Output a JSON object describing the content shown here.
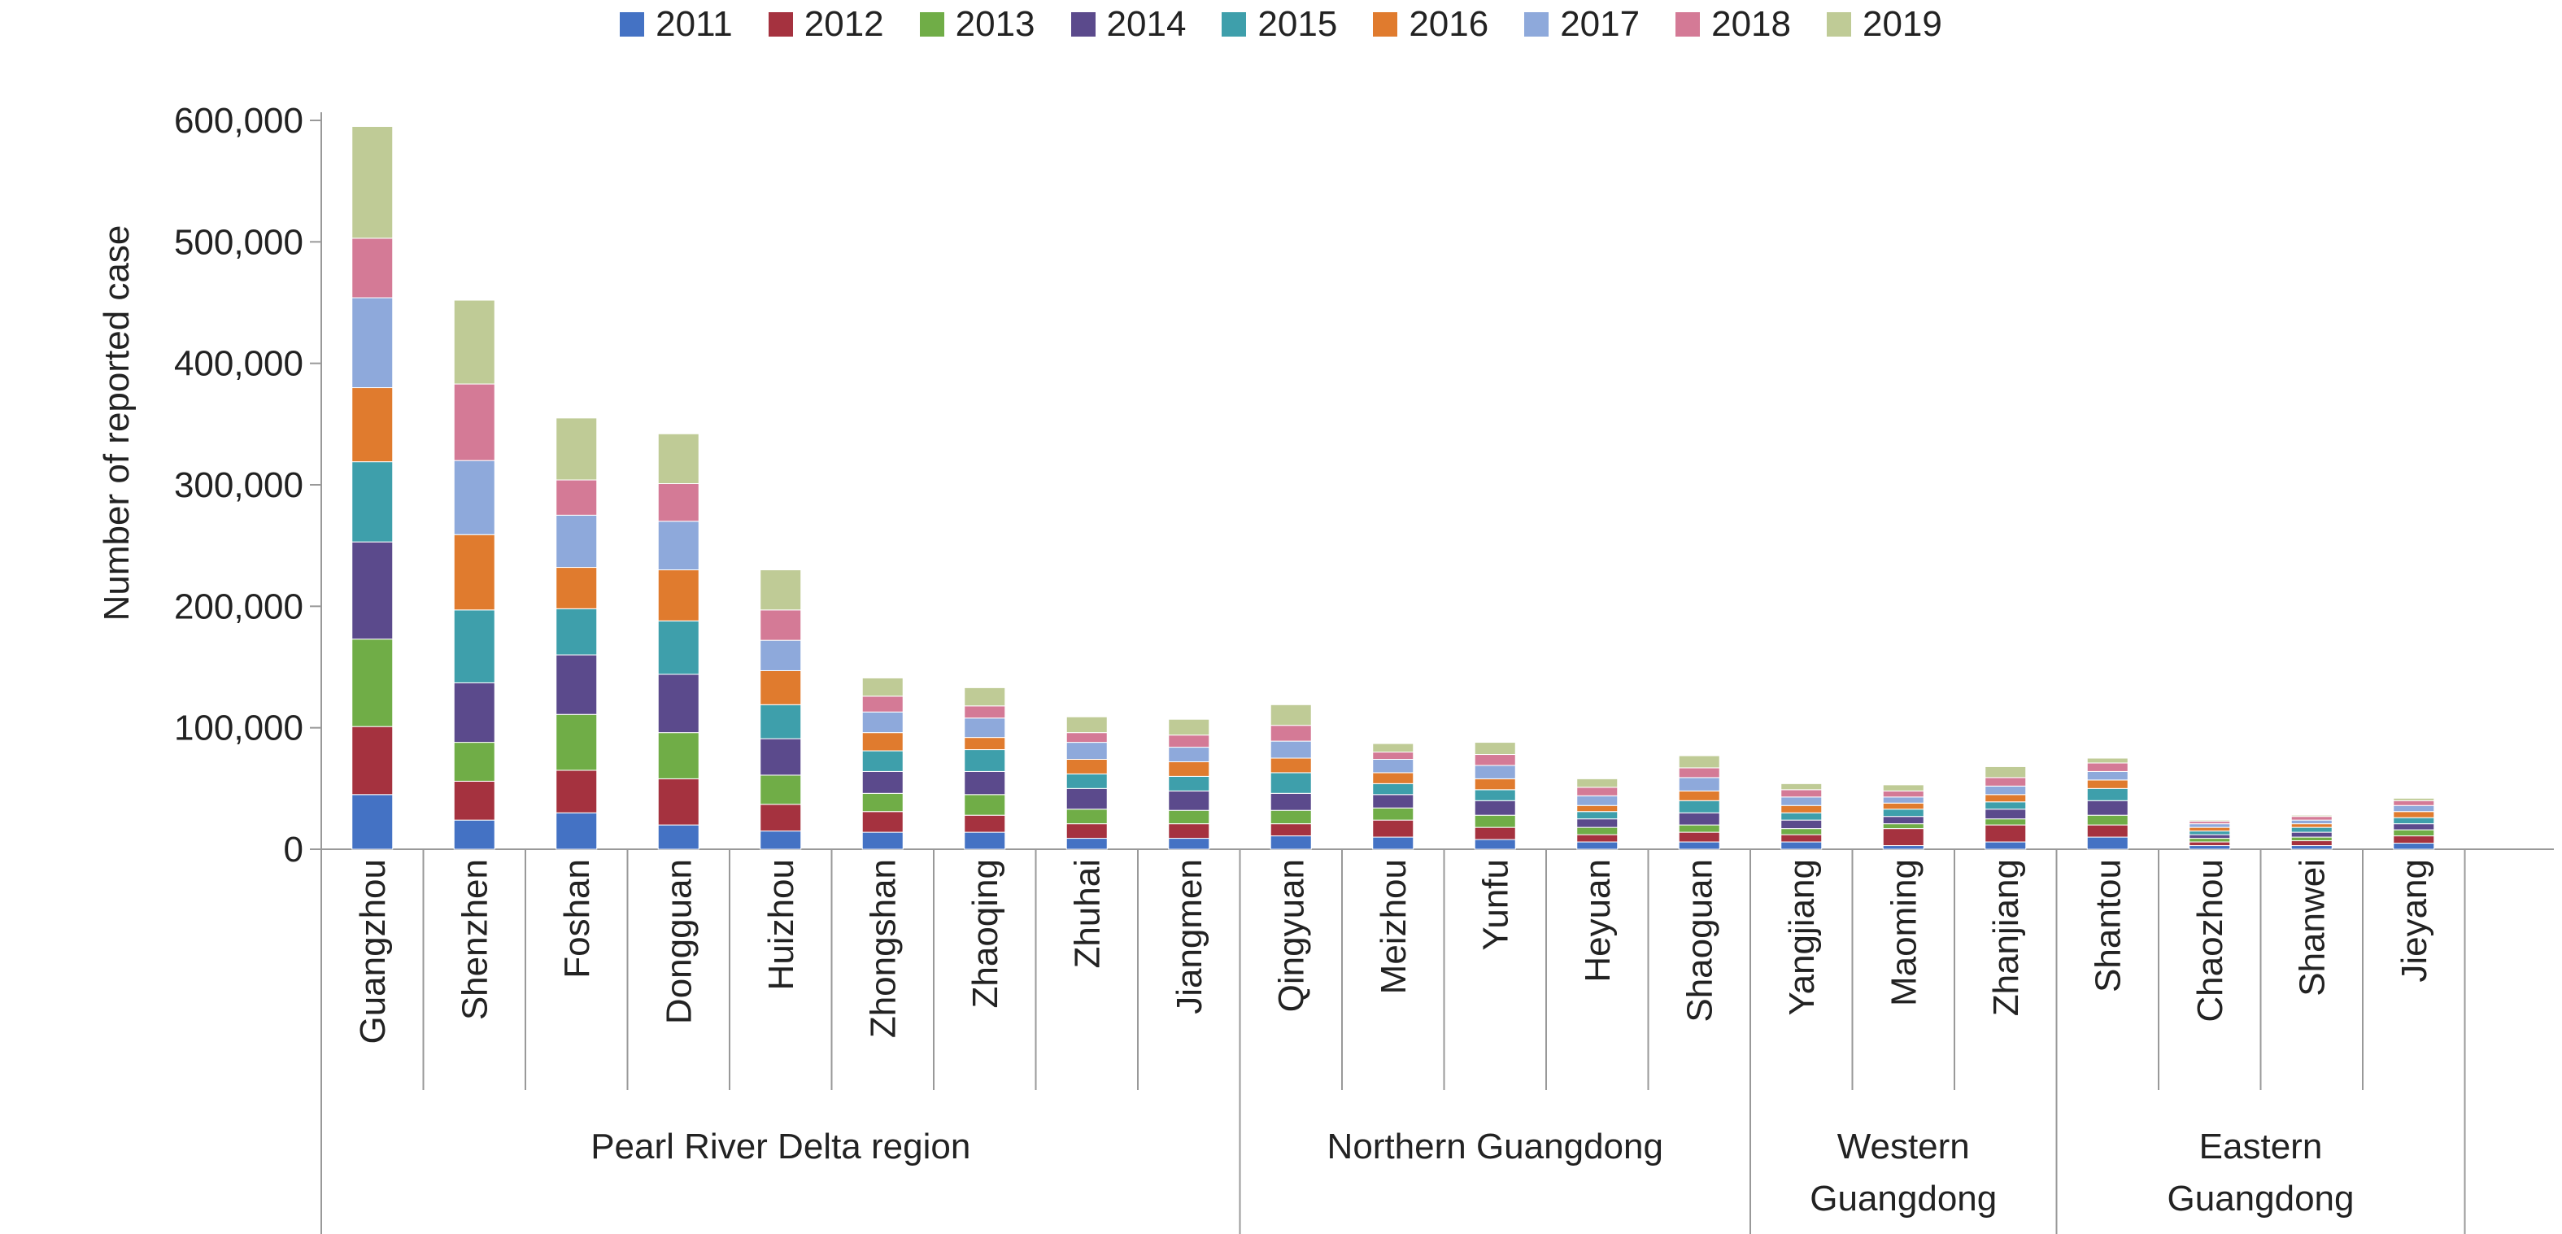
{
  "chart_data": {
    "type": "bar",
    "stacked": true,
    "ylabel": "Number of reported case",
    "ylim": [
      0,
      600000
    ],
    "yticks": [
      "0",
      "100,000",
      "200,000",
      "300,000",
      "400,000",
      "500,000",
      "600,000"
    ],
    "yticks_values": [
      0,
      100000,
      200000,
      300000,
      400000,
      500000,
      600000
    ],
    "legend_position": "top",
    "grid": false,
    "categories": [
      "Guangzhou",
      "Shenzhen",
      "Foshan",
      "Dongguan",
      "Huizhou",
      "Zhongshan",
      "Zhaoqing",
      "Zhuhai",
      "Jiangmen",
      "Qingyuan",
      "Meizhou",
      "Yunfu",
      "Heyuan",
      "Shaoguan",
      "Yangjiang",
      "Maoming",
      "Zhanjiang",
      "Shantou",
      "Chaozhou",
      "Shanwei",
      "Jieyang"
    ],
    "groups": [
      {
        "label": "Pearl River Delta region",
        "count": 9
      },
      {
        "label": "Northern Guangdong",
        "count": 5
      },
      {
        "label": "Western Guangdong",
        "count": 3
      },
      {
        "label": "Eastern Guangdong",
        "count": 4
      }
    ],
    "series": [
      {
        "name": "2011",
        "color": "#4472C4",
        "values": [
          45000,
          24000,
          30000,
          20000,
          15000,
          14000,
          14000,
          9000,
          9000,
          11000,
          10000,
          8000,
          6000,
          6000,
          6000,
          3000,
          6000,
          10000,
          3000,
          3000,
          5000
        ]
      },
      {
        "name": "2012",
        "color": "#A5323F",
        "values": [
          56000,
          32000,
          35000,
          38000,
          22000,
          17000,
          14000,
          12000,
          12000,
          10000,
          14000,
          10000,
          6000,
          8000,
          6000,
          14000,
          14000,
          10000,
          3000,
          4000,
          6000
        ]
      },
      {
        "name": "2013",
        "color": "#70AD47",
        "values": [
          72000,
          32000,
          46000,
          38000,
          24000,
          15000,
          17000,
          12000,
          11000,
          11000,
          10000,
          10000,
          6000,
          6000,
          5000,
          4000,
          5000,
          8000,
          3000,
          3000,
          5000
        ]
      },
      {
        "name": "2014",
        "color": "#5B4A8C",
        "values": [
          80000,
          49000,
          49000,
          48000,
          30000,
          18000,
          19000,
          17000,
          16000,
          14000,
          11000,
          12000,
          7000,
          10000,
          7000,
          6000,
          8000,
          12000,
          3000,
          4000,
          5000
        ]
      },
      {
        "name": "2015",
        "color": "#3E9FAB",
        "values": [
          66000,
          60000,
          38000,
          44000,
          28000,
          17000,
          18000,
          12000,
          12000,
          17000,
          9000,
          9000,
          6000,
          10000,
          6000,
          6000,
          6000,
          10000,
          3000,
          4000,
          5000
        ]
      },
      {
        "name": "2016",
        "color": "#E07B2E",
        "values": [
          61000,
          62000,
          34000,
          42000,
          28000,
          15000,
          10000,
          12000,
          12000,
          12000,
          9000,
          9000,
          5000,
          8000,
          6000,
          5000,
          6000,
          7000,
          3000,
          3000,
          5000
        ]
      },
      {
        "name": "2017",
        "color": "#8EA9DB",
        "values": [
          74000,
          61000,
          43000,
          40000,
          25000,
          17000,
          16000,
          14000,
          12000,
          14000,
          11000,
          11000,
          8000,
          11000,
          7000,
          5000,
          7000,
          7000,
          3000,
          3000,
          5000
        ]
      },
      {
        "name": "2018",
        "color": "#D47A96",
        "values": [
          49000,
          63000,
          29000,
          31000,
          25000,
          13000,
          10000,
          8000,
          10000,
          13000,
          6000,
          9000,
          7000,
          8000,
          6000,
          5000,
          7000,
          7000,
          2000,
          3000,
          4000
        ]
      },
      {
        "name": "2019",
        "color": "#BFCB96",
        "values": [
          92000,
          69000,
          51000,
          41000,
          33000,
          15000,
          15000,
          13000,
          13000,
          17000,
          7000,
          10000,
          7000,
          10000,
          5000,
          5000,
          9000,
          4000,
          1000,
          1000,
          2000
        ]
      }
    ]
  }
}
